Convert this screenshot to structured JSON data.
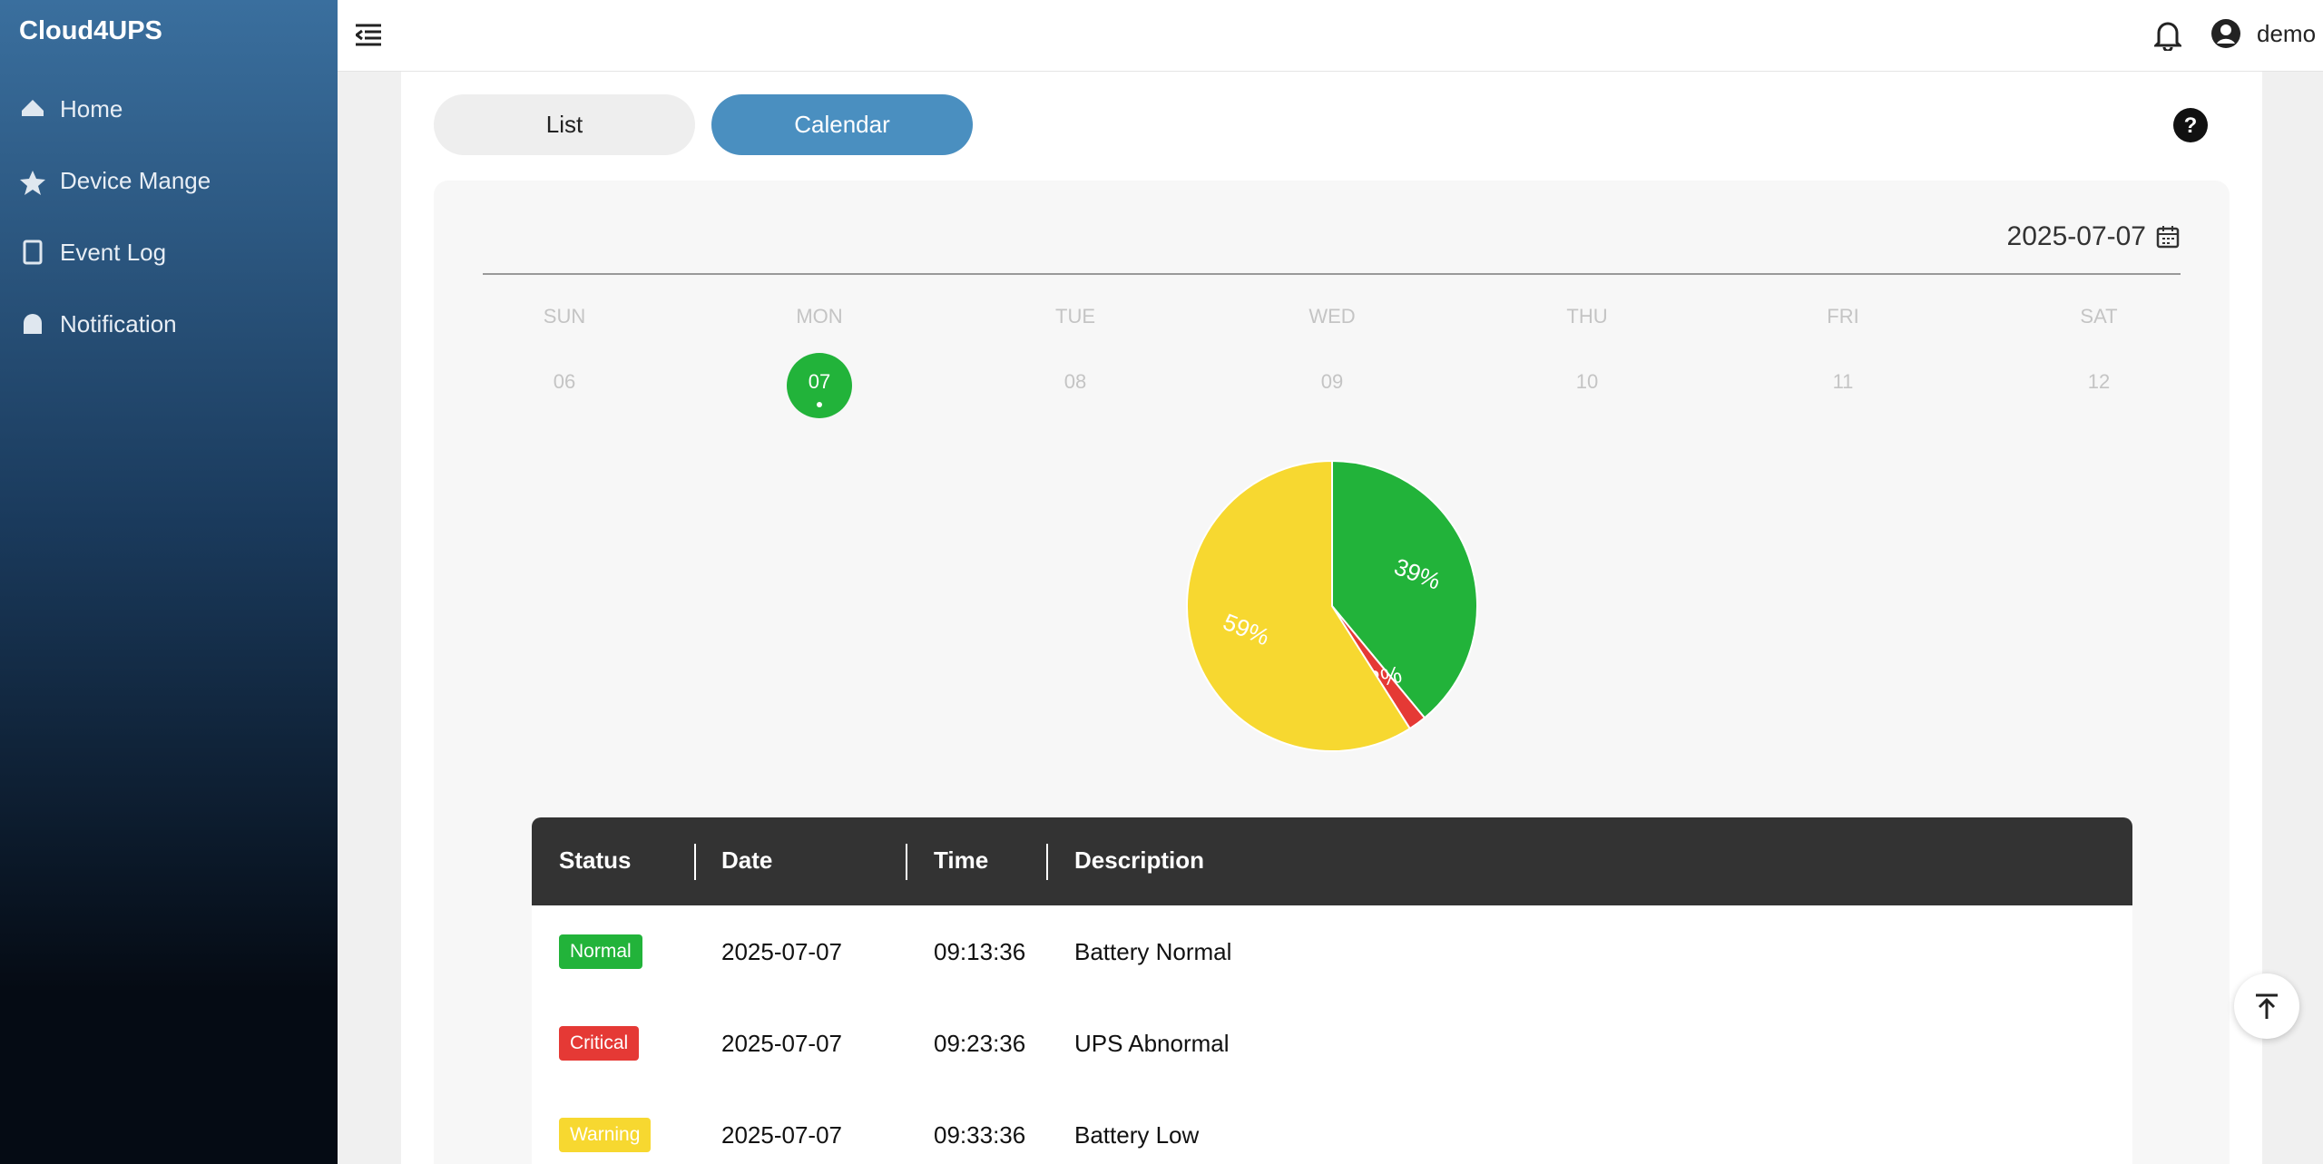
{
  "sidebar": {
    "brand": "Cloud4UPS",
    "menu": [
      "Home",
      "Device Mange",
      "Event Log",
      "Notification"
    ]
  },
  "topbar": {
    "user": "demo"
  },
  "tabs": [
    "List",
    "Calendar"
  ],
  "calendar": {
    "date": "2025-07-07",
    "weekdays": [
      "SUN",
      "MON",
      "TUE",
      "WED",
      "THU",
      "FRI",
      "SAT"
    ],
    "days": [
      "06",
      "07",
      "08",
      "09",
      "10",
      "11",
      "12"
    ],
    "selected": 1
  },
  "chart_data": {
    "type": "pie",
    "values": [
      39,
      2,
      59
    ],
    "value_labels": [
      "39%",
      "2%",
      "59%"
    ],
    "colors": [
      "#22b33a",
      "#e53935",
      "#f7d830"
    ]
  },
  "table": {
    "headers": [
      "Status",
      "Date",
      "Time",
      "Description"
    ],
    "rows": [
      [
        "Normal",
        "2025-07-07",
        "09:13:36",
        "Battery Normal"
      ],
      [
        "Critical",
        "2025-07-07",
        "09:23:36",
        "UPS Abnormal"
      ],
      [
        "Warning",
        "2025-07-07",
        "09:33:36",
        "Battery Low"
      ]
    ],
    "badge_colors": [
      "#22b33a",
      "#e53935",
      "#f7d830"
    ]
  }
}
